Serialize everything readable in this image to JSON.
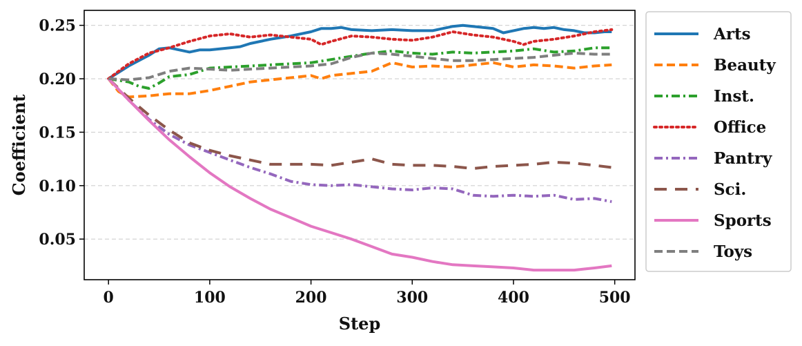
{
  "chart_data": {
    "type": "line",
    "title": "",
    "xlabel": "Step",
    "ylabel": "Coefficient",
    "xlim": [
      -24,
      520
    ],
    "ylim": [
      0.012,
      0.264
    ],
    "xticks": [
      0,
      100,
      200,
      300,
      400,
      500
    ],
    "xtick_labels": [
      "0",
      "100",
      "200",
      "300",
      "400",
      "500"
    ],
    "yticks": [
      0.05,
      0.1,
      0.15,
      0.2,
      0.25
    ],
    "ytick_labels": [
      "0.05",
      "0.10",
      "0.15",
      "0.20",
      "0.25"
    ],
    "grid": "horizontal dashed",
    "legend_position": "outside right",
    "series": [
      {
        "name": "Arts",
        "color": "#1f77b4",
        "dash": "solid",
        "points": [
          [
            0,
            0.2
          ],
          [
            20,
            0.212
          ],
          [
            40,
            0.222
          ],
          [
            50,
            0.228
          ],
          [
            60,
            0.229
          ],
          [
            70,
            0.227
          ],
          [
            80,
            0.225
          ],
          [
            90,
            0.227
          ],
          [
            100,
            0.227
          ],
          [
            110,
            0.228
          ],
          [
            120,
            0.229
          ],
          [
            130,
            0.23
          ],
          [
            140,
            0.233
          ],
          [
            160,
            0.237
          ],
          [
            180,
            0.24
          ],
          [
            200,
            0.244
          ],
          [
            210,
            0.247
          ],
          [
            220,
            0.247
          ],
          [
            230,
            0.248
          ],
          [
            240,
            0.246
          ],
          [
            260,
            0.245
          ],
          [
            280,
            0.246
          ],
          [
            300,
            0.245
          ],
          [
            320,
            0.245
          ],
          [
            340,
            0.249
          ],
          [
            350,
            0.25
          ],
          [
            360,
            0.249
          ],
          [
            380,
            0.247
          ],
          [
            390,
            0.243
          ],
          [
            400,
            0.245
          ],
          [
            410,
            0.247
          ],
          [
            420,
            0.248
          ],
          [
            430,
            0.247
          ],
          [
            440,
            0.248
          ],
          [
            450,
            0.246
          ],
          [
            460,
            0.245
          ],
          [
            470,
            0.243
          ],
          [
            480,
            0.243
          ],
          [
            490,
            0.244
          ],
          [
            497,
            0.244
          ]
        ]
      },
      {
        "name": "Beauty",
        "color": "#ff7f0e",
        "dash": "dashed",
        "points": [
          [
            0,
            0.2
          ],
          [
            10,
            0.188
          ],
          [
            20,
            0.183
          ],
          [
            40,
            0.184
          ],
          [
            60,
            0.186
          ],
          [
            80,
            0.186
          ],
          [
            100,
            0.189
          ],
          [
            120,
            0.193
          ],
          [
            140,
            0.197
          ],
          [
            160,
            0.199
          ],
          [
            180,
            0.201
          ],
          [
            200,
            0.203
          ],
          [
            210,
            0.2
          ],
          [
            220,
            0.203
          ],
          [
            240,
            0.205
          ],
          [
            260,
            0.207
          ],
          [
            280,
            0.215
          ],
          [
            300,
            0.211
          ],
          [
            320,
            0.212
          ],
          [
            340,
            0.211
          ],
          [
            360,
            0.213
          ],
          [
            380,
            0.215
          ],
          [
            400,
            0.211
          ],
          [
            420,
            0.213
          ],
          [
            440,
            0.212
          ],
          [
            460,
            0.21
          ],
          [
            480,
            0.212
          ],
          [
            497,
            0.213
          ]
        ]
      },
      {
        "name": "Inst.",
        "color": "#2ca02c",
        "dash": "dashdot",
        "points": [
          [
            0,
            0.2
          ],
          [
            20,
            0.197
          ],
          [
            30,
            0.193
          ],
          [
            40,
            0.191
          ],
          [
            50,
            0.196
          ],
          [
            60,
            0.202
          ],
          [
            80,
            0.204
          ],
          [
            100,
            0.21
          ],
          [
            120,
            0.211
          ],
          [
            140,
            0.212
          ],
          [
            160,
            0.213
          ],
          [
            180,
            0.214
          ],
          [
            200,
            0.215
          ],
          [
            220,
            0.218
          ],
          [
            240,
            0.221
          ],
          [
            260,
            0.224
          ],
          [
            280,
            0.226
          ],
          [
            300,
            0.224
          ],
          [
            320,
            0.223
          ],
          [
            340,
            0.225
          ],
          [
            360,
            0.224
          ],
          [
            380,
            0.225
          ],
          [
            400,
            0.226
          ],
          [
            420,
            0.228
          ],
          [
            440,
            0.225
          ],
          [
            460,
            0.226
          ],
          [
            480,
            0.229
          ],
          [
            497,
            0.229
          ]
        ]
      },
      {
        "name": "Office",
        "color": "#d62728",
        "dash": "dotted",
        "points": [
          [
            0,
            0.2
          ],
          [
            20,
            0.214
          ],
          [
            40,
            0.224
          ],
          [
            60,
            0.229
          ],
          [
            80,
            0.235
          ],
          [
            100,
            0.24
          ],
          [
            120,
            0.242
          ],
          [
            140,
            0.239
          ],
          [
            160,
            0.241
          ],
          [
            180,
            0.239
          ],
          [
            200,
            0.237
          ],
          [
            210,
            0.232
          ],
          [
            220,
            0.235
          ],
          [
            240,
            0.24
          ],
          [
            260,
            0.239
          ],
          [
            280,
            0.237
          ],
          [
            300,
            0.236
          ],
          [
            320,
            0.239
          ],
          [
            340,
            0.244
          ],
          [
            360,
            0.241
          ],
          [
            380,
            0.239
          ],
          [
            400,
            0.235
          ],
          [
            410,
            0.232
          ],
          [
            420,
            0.235
          ],
          [
            440,
            0.237
          ],
          [
            460,
            0.24
          ],
          [
            480,
            0.244
          ],
          [
            497,
            0.246
          ]
        ]
      },
      {
        "name": "Pantry",
        "color": "#9467bd",
        "dash": "dashdot",
        "points": [
          [
            0,
            0.2
          ],
          [
            20,
            0.18
          ],
          [
            40,
            0.162
          ],
          [
            60,
            0.148
          ],
          [
            80,
            0.138
          ],
          [
            100,
            0.131
          ],
          [
            120,
            0.124
          ],
          [
            140,
            0.117
          ],
          [
            160,
            0.111
          ],
          [
            180,
            0.104
          ],
          [
            200,
            0.101
          ],
          [
            220,
            0.1
          ],
          [
            240,
            0.101
          ],
          [
            260,
            0.099
          ],
          [
            280,
            0.097
          ],
          [
            300,
            0.096
          ],
          [
            320,
            0.098
          ],
          [
            340,
            0.097
          ],
          [
            360,
            0.091
          ],
          [
            380,
            0.09
          ],
          [
            400,
            0.091
          ],
          [
            420,
            0.09
          ],
          [
            440,
            0.091
          ],
          [
            460,
            0.087
          ],
          [
            480,
            0.088
          ],
          [
            497,
            0.085
          ]
        ]
      },
      {
        "name": "Sci.",
        "color": "#8c564b",
        "dash": "longdash",
        "points": [
          [
            0,
            0.2
          ],
          [
            20,
            0.182
          ],
          [
            40,
            0.166
          ],
          [
            60,
            0.152
          ],
          [
            80,
            0.14
          ],
          [
            100,
            0.133
          ],
          [
            120,
            0.128
          ],
          [
            140,
            0.124
          ],
          [
            160,
            0.12
          ],
          [
            180,
            0.12
          ],
          [
            200,
            0.12
          ],
          [
            220,
            0.119
          ],
          [
            240,
            0.122
          ],
          [
            260,
            0.125
          ],
          [
            280,
            0.12
          ],
          [
            300,
            0.119
          ],
          [
            320,
            0.119
          ],
          [
            340,
            0.118
          ],
          [
            360,
            0.116
          ],
          [
            380,
            0.118
          ],
          [
            400,
            0.119
          ],
          [
            420,
            0.12
          ],
          [
            440,
            0.122
          ],
          [
            460,
            0.121
          ],
          [
            480,
            0.119
          ],
          [
            497,
            0.117
          ]
        ]
      },
      {
        "name": "Sports",
        "color": "#e377c2",
        "dash": "solid",
        "points": [
          [
            0,
            0.2
          ],
          [
            20,
            0.18
          ],
          [
            40,
            0.161
          ],
          [
            60,
            0.143
          ],
          [
            80,
            0.127
          ],
          [
            100,
            0.112
          ],
          [
            120,
            0.099
          ],
          [
            140,
            0.088
          ],
          [
            160,
            0.078
          ],
          [
            180,
            0.07
          ],
          [
            200,
            0.062
          ],
          [
            220,
            0.056
          ],
          [
            240,
            0.05
          ],
          [
            260,
            0.043
          ],
          [
            280,
            0.036
          ],
          [
            300,
            0.033
          ],
          [
            320,
            0.029
          ],
          [
            340,
            0.026
          ],
          [
            360,
            0.025
          ],
          [
            380,
            0.024
          ],
          [
            400,
            0.023
          ],
          [
            420,
            0.021
          ],
          [
            440,
            0.021
          ],
          [
            460,
            0.021
          ],
          [
            470,
            0.022
          ],
          [
            480,
            0.023
          ],
          [
            497,
            0.025
          ]
        ]
      },
      {
        "name": "Toys",
        "color": "#7f7f7f",
        "dash": "dashed",
        "points": [
          [
            0,
            0.2
          ],
          [
            20,
            0.199
          ],
          [
            40,
            0.201
          ],
          [
            60,
            0.207
          ],
          [
            80,
            0.21
          ],
          [
            100,
            0.209
          ],
          [
            120,
            0.208
          ],
          [
            140,
            0.209
          ],
          [
            160,
            0.21
          ],
          [
            180,
            0.211
          ],
          [
            200,
            0.212
          ],
          [
            220,
            0.214
          ],
          [
            240,
            0.22
          ],
          [
            260,
            0.224
          ],
          [
            280,
            0.223
          ],
          [
            300,
            0.221
          ],
          [
            320,
            0.219
          ],
          [
            340,
            0.217
          ],
          [
            360,
            0.217
          ],
          [
            380,
            0.218
          ],
          [
            400,
            0.219
          ],
          [
            420,
            0.22
          ],
          [
            440,
            0.222
          ],
          [
            460,
            0.224
          ],
          [
            480,
            0.223
          ],
          [
            497,
            0.223
          ]
        ]
      }
    ]
  }
}
